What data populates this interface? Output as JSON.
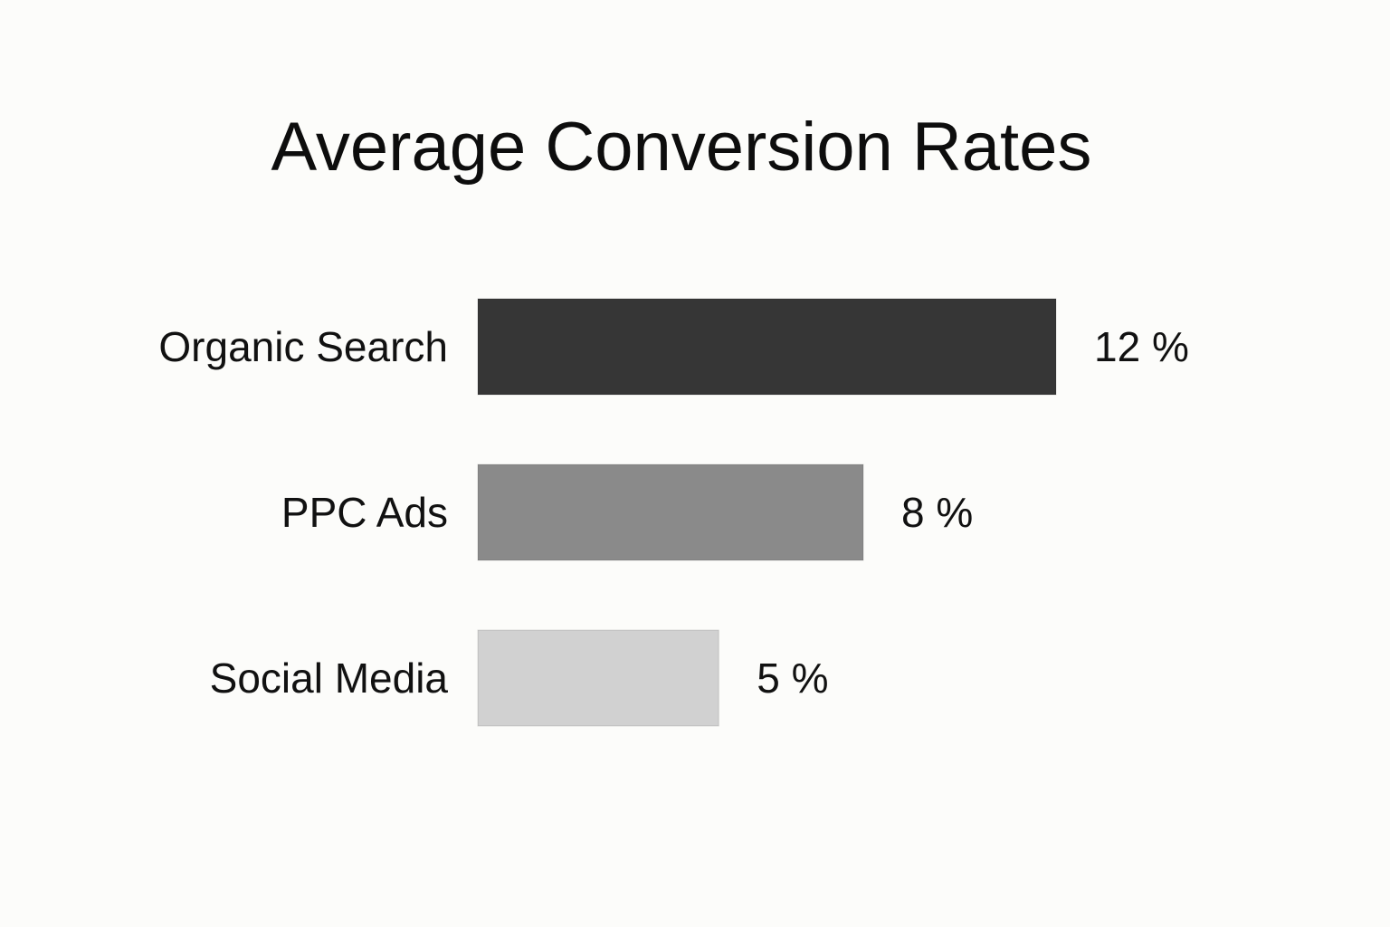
{
  "chart_data": {
    "type": "bar",
    "orientation": "horizontal",
    "title": "Average Conversion Rates",
    "categories": [
      "Organic Search",
      "PPC Ads",
      "Social Media"
    ],
    "values": [
      12,
      8,
      5
    ],
    "value_labels": [
      "12 %",
      "8 %",
      "5 %"
    ],
    "xlabel": "",
    "ylabel": "",
    "unit": "%",
    "xlim": [
      0,
      12
    ],
    "grid": false,
    "legend": "none",
    "bar_colors": [
      "#363636",
      "#8a8a8a",
      "#d1d1d1"
    ],
    "background_color": "#fcfcfa"
  }
}
